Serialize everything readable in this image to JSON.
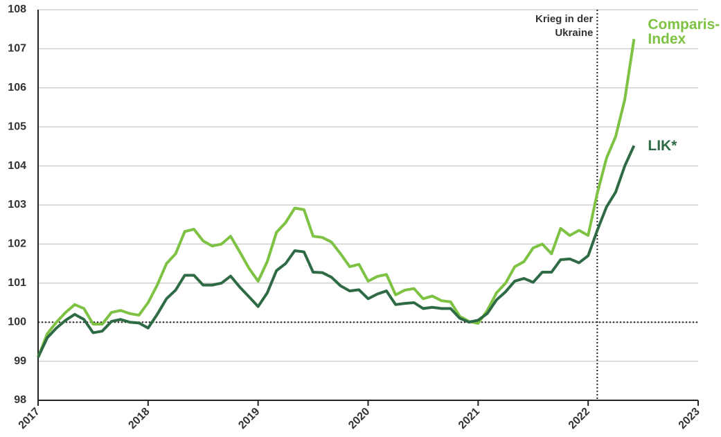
{
  "chart_data": {
    "type": "line",
    "x": [
      2017,
      2017.083,
      2017.167,
      2017.25,
      2017.333,
      2017.417,
      2017.5,
      2017.583,
      2017.667,
      2017.75,
      2017.833,
      2017.917,
      2018,
      2018.083,
      2018.167,
      2018.25,
      2018.333,
      2018.417,
      2018.5,
      2018.583,
      2018.667,
      2018.75,
      2018.833,
      2018.917,
      2019,
      2019.083,
      2019.167,
      2019.25,
      2019.333,
      2019.417,
      2019.5,
      2019.583,
      2019.667,
      2019.75,
      2019.833,
      2019.917,
      2020,
      2020.083,
      2020.167,
      2020.25,
      2020.333,
      2020.417,
      2020.5,
      2020.583,
      2020.667,
      2020.75,
      2020.833,
      2020.917,
      2021,
      2021.083,
      2021.167,
      2021.25,
      2021.333,
      2021.417,
      2021.5,
      2021.583,
      2021.667,
      2021.75,
      2021.833,
      2021.917,
      2022,
      2022.083,
      2022.167,
      2022.25,
      2022.333,
      2022.417
    ],
    "series": [
      {
        "name": "Comparis-Index",
        "color": "#7dc242",
        "values": [
          99.1,
          99.7,
          100.0,
          100.25,
          100.45,
          100.35,
          99.95,
          99.95,
          100.25,
          100.3,
          100.22,
          100.18,
          100.5,
          100.95,
          101.5,
          101.75,
          102.32,
          102.38,
          102.08,
          101.95,
          102.0,
          102.2,
          101.8,
          101.38,
          101.05,
          101.55,
          102.3,
          102.55,
          102.92,
          102.88,
          102.2,
          102.17,
          102.05,
          101.75,
          101.42,
          101.48,
          101.05,
          101.17,
          101.22,
          100.7,
          100.82,
          100.86,
          100.6,
          100.67,
          100.55,
          100.52,
          100.15,
          100.02,
          99.97,
          100.3,
          100.75,
          101.0,
          101.42,
          101.55,
          101.9,
          102.0,
          101.75,
          102.4,
          102.22,
          102.35,
          102.22,
          103.3,
          104.2,
          104.75,
          105.7,
          107.25
        ]
      },
      {
        "name": "LIK*",
        "color": "#2e6b45",
        "values": [
          99.1,
          99.6,
          99.85,
          100.05,
          100.2,
          100.07,
          99.73,
          99.77,
          100.02,
          100.07,
          100.0,
          99.98,
          99.85,
          100.2,
          100.6,
          100.82,
          101.2,
          101.2,
          100.95,
          100.95,
          101.0,
          101.18,
          100.9,
          100.65,
          100.4,
          100.75,
          101.32,
          101.5,
          101.83,
          101.8,
          101.28,
          101.27,
          101.15,
          100.93,
          100.8,
          100.83,
          100.6,
          100.72,
          100.8,
          100.45,
          100.48,
          100.5,
          100.35,
          100.38,
          100.35,
          100.35,
          100.1,
          100.0,
          100.05,
          100.22,
          100.57,
          100.78,
          101.05,
          101.12,
          101.02,
          101.28,
          101.28,
          101.6,
          101.62,
          101.52,
          101.7,
          102.35,
          102.95,
          103.33,
          104.0,
          104.52
        ]
      }
    ],
    "xlim": [
      2017,
      2023
    ],
    "xticks": [
      2017,
      2018,
      2019,
      2020,
      2021,
      2022,
      2023
    ],
    "ylim": [
      98,
      108
    ],
    "yticks": [
      98,
      99,
      100,
      101,
      102,
      103,
      104,
      105,
      106,
      107,
      108
    ],
    "grid": true,
    "reference_line": 100,
    "annotation": {
      "text": "Krieg in der Ukraine",
      "x": 2022.083
    }
  }
}
